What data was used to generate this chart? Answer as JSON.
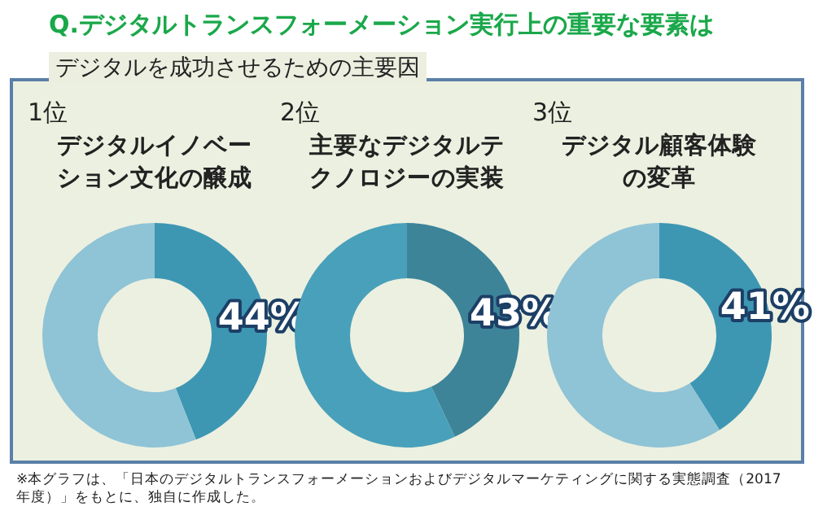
{
  "chart_data": [
    {
      "type": "other",
      "title": "Q.デジタルトランスフォーメーション実行上の重要な要素は",
      "subtitle": "デジタルを成功させるための主要因",
      "annotations": [
        "※本グラフは、「日本のデジタルトランスフォーメーションおよびデジタルマーケティングに関する実態調査（2017年度）」をもとに、独自に作成した。"
      ]
    },
    {
      "type": "donut",
      "subtitle": "1位",
      "title": "デジタルイノベーション文化の醸成",
      "categories": [
        null,
        null
      ],
      "values": [
        44,
        56
      ],
      "colors": [
        "#3d97b3",
        "#8fc3d6"
      ],
      "value_labels": [
        "44%",
        null
      ]
    },
    {
      "type": "donut",
      "subtitle": "2位",
      "title": "主要なデジタルテクノロジーの実装",
      "categories": [
        null,
        null
      ],
      "values": [
        43,
        57
      ],
      "colors": [
        "#3d8499",
        "#49a0ba"
      ],
      "value_labels": [
        "43%",
        null
      ]
    },
    {
      "type": "donut",
      "subtitle": "3位",
      "title": "デジタル顧客体験の変革",
      "categories": [
        null,
        null
      ],
      "values": [
        41,
        59
      ],
      "colors": [
        "#3d97b3",
        "#8fc3d6"
      ],
      "value_labels": [
        "41%",
        null
      ]
    }
  ]
}
